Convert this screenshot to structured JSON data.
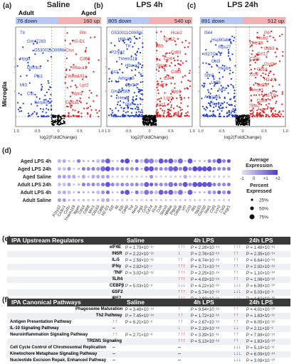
{
  "panels": [
    {
      "letter": "(a)",
      "title": "Saline",
      "left_label": "Adult",
      "right_label": "Aged",
      "down": "76 down",
      "up": "160 up",
      "down_genes": [
        "Ttr",
        "Gm47283",
        "G530011O06Rik",
        "Hpgd",
        "Dmrtb1",
        "Plp1",
        "Mt3",
        "Clu",
        "Serpinf1"
      ],
      "up_genes": [
        "Prlr",
        "H2-D1",
        "Ctss",
        "Cd63",
        "Hba-a1",
        "Tmem181a",
        "Lyz2",
        "Npc2",
        "Eef1a1"
      ]
    },
    {
      "letter": "(b)",
      "title": "LPS 4h",
      "left_label": "",
      "right_label": "",
      "down": "805 down",
      "up": "540 up",
      "down_genes": [
        "G530011O06Rik",
        "Hbb-bs",
        "Ttr",
        "P2ry12",
        "Tmem119",
        "Hba-a1",
        "S11",
        "Arhgap5",
        "Gpr34",
        "Gm47283",
        "Hexb",
        "Pf4"
      ],
      "up_genes": [
        "Hcar2",
        "Ccl12",
        "Il1b",
        "Cd83",
        "Ccl4",
        "Sparc",
        "Cd63",
        "Cd40",
        "Cd74",
        "Spp1",
        "Lcn2",
        "Lyz2"
      ]
    },
    {
      "letter": "(c)",
      "title": "LPS 24h",
      "left_label": "",
      "right_label": "",
      "down": "891 down",
      "up": "512 up",
      "down_genes": [
        "Ifi44",
        "Hsp90ab1",
        "Rps27",
        "Ifi27l2a",
        "Cst3",
        "Hexb",
        "Slfn5",
        "Ly86",
        "Mt3",
        "Arhgap5",
        "Txnip"
      ],
      "up_genes": [
        "Prlr",
        "Hcar2",
        "Cxcl10",
        "Cd63",
        "Ccl12",
        "C1qc",
        "Ccrl2",
        "Cd14",
        "Ccl4",
        "H2-K1",
        "Cd74",
        "Hmox1",
        "H2-D1",
        "Cd83",
        "Slfn2"
      ]
    }
  ],
  "microglia_label": "Microglia",
  "y_axis": "Significance (-log10P)",
  "x_axis": "log2(FoldChange)",
  "volcano_ticks": {
    "x": [
      "-1.0",
      "-0.5",
      "0",
      "0.5",
      "1.0"
    ],
    "y": [
      "0",
      "5",
      "10",
      "15",
      "20"
    ]
  },
  "panel_d": {
    "letter": "(d)",
    "rows": [
      "Aged LPS 4h",
      "Aged LPS 24h",
      "Aged Saline",
      "Adult LPS 24h",
      "Adult LPS 4h",
      "Adult Saline"
    ],
    "cols": [
      "P2ry12",
      "Cx3cr1",
      "Csf1r",
      "Tmem119",
      "Itgam",
      "Cd14",
      "Cd68",
      "Mrc1",
      "Cd163",
      "Cd86",
      "H2-D1",
      "Il10",
      "Il6",
      "Il1b",
      "Cd40",
      "Tnf",
      "Nos2",
      "Arg1",
      "Ccl2",
      "Cd74",
      "Il1rn",
      "Ccl4",
      "Socs3",
      "Nfkbia",
      "Ptgs2",
      "Cebpb",
      "Irf7",
      "Ccl3",
      "Ifit1",
      "Isg15",
      "Cxcl10",
      "Stat1",
      "Csf3",
      "Lcn2",
      "Cst3",
      "Fcgr1"
    ],
    "dots": [
      [
        2,
        2,
        1,
        1,
        2,
        1,
        1,
        1,
        2,
        2,
        3,
        1,
        1,
        2,
        3,
        1,
        2,
        2,
        3,
        3,
        2,
        3,
        2,
        3,
        2,
        3,
        1,
        3,
        1,
        1,
        1,
        2,
        2,
        3,
        2,
        2
      ],
      [
        2,
        2,
        2,
        1,
        1,
        2,
        2,
        2,
        2,
        3,
        3,
        2,
        2,
        2,
        2,
        2,
        2,
        1,
        3,
        3,
        2,
        2,
        2,
        3,
        3,
        2,
        3,
        2,
        3,
        3,
        3,
        3,
        2,
        2,
        2,
        2
      ],
      [
        2,
        2,
        2,
        2,
        1,
        2,
        1,
        2,
        2,
        2,
        2,
        1,
        1,
        1,
        1,
        1,
        1,
        1,
        1,
        2,
        1,
        1,
        1,
        1,
        1,
        1,
        2,
        1,
        1,
        1,
        1,
        1,
        1,
        1,
        1,
        1
      ],
      [
        2,
        2,
        2,
        1,
        1,
        2,
        2,
        2,
        2,
        2,
        3,
        2,
        2,
        2,
        2,
        2,
        2,
        2,
        3,
        2,
        2,
        2,
        2,
        3,
        2,
        2,
        3,
        2,
        3,
        3,
        3,
        3,
        2,
        2,
        2,
        2
      ],
      [
        2,
        2,
        2,
        1,
        1,
        1,
        1,
        1,
        2,
        2,
        2,
        1,
        1,
        2,
        3,
        1,
        2,
        2,
        3,
        2,
        2,
        3,
        2,
        3,
        2,
        3,
        1,
        3,
        1,
        1,
        1,
        2,
        2,
        2,
        2,
        2
      ],
      [
        2,
        2,
        1,
        1,
        1,
        1,
        1,
        1,
        1,
        2,
        2,
        1,
        1,
        1,
        1,
        1,
        1,
        1,
        1,
        1,
        1,
        1,
        1,
        1,
        1,
        1,
        1,
        1,
        1,
        1,
        1,
        1,
        1,
        1,
        1,
        1
      ]
    ],
    "expr": [
      [
        -0.2,
        0,
        -0.4,
        -0.6,
        0.8,
        -0.2,
        -0.4,
        0.3,
        -0.4,
        0.4,
        1.4,
        -0.4,
        -0.4,
        1.6,
        1.8,
        -0.4,
        1.2,
        -0.4,
        1.2,
        0.8,
        -0.4,
        1.6,
        1.4,
        1.6,
        -0.2,
        1.2,
        -0.4,
        1.6,
        -0.4,
        -0.4,
        -0.4,
        0.6,
        0.6,
        1.8,
        0.6,
        1.6
      ],
      [
        -0.4,
        -0.4,
        0.4,
        -0.6,
        -0.2,
        0.8,
        0.6,
        0.8,
        0.4,
        1.2,
        1.8,
        0.8,
        0.4,
        0.6,
        0.4,
        0.4,
        0.8,
        0,
        1.6,
        1.6,
        0.6,
        0.6,
        0.4,
        1.2,
        1.4,
        0.6,
        1.6,
        0.6,
        1.8,
        1.6,
        1.6,
        1.8,
        0.8,
        0.6,
        0.6,
        0.8
      ],
      [
        0.2,
        0.2,
        0,
        0,
        -0.4,
        0,
        -0.4,
        0,
        0,
        0,
        0.2,
        -0.6,
        -0.6,
        -0.6,
        -0.6,
        -0.6,
        -0.6,
        -0.6,
        -0.6,
        0.4,
        -0.6,
        -0.6,
        -0.6,
        -0.6,
        -0.6,
        -0.6,
        0,
        -0.6,
        -0.6,
        -0.6,
        -0.6,
        -0.6,
        -0.6,
        -0.6,
        -0.6,
        -0.6
      ],
      [
        -0.4,
        -0.4,
        0.2,
        -0.6,
        -0.2,
        0.8,
        0.4,
        0.6,
        0.2,
        1,
        1.6,
        0.6,
        0.2,
        0.6,
        0.4,
        0.4,
        0.6,
        0,
        1.4,
        1.4,
        0.6,
        0.6,
        0.4,
        1,
        1.2,
        0.6,
        1.6,
        0.6,
        1.6,
        1.6,
        1.6,
        1.6,
        0.8,
        0.6,
        0.6,
        0.8
      ],
      [
        -0.2,
        0,
        -0.4,
        -0.6,
        0.6,
        -0.2,
        -0.4,
        0.2,
        -0.4,
        0.4,
        1.2,
        -0.4,
        -0.4,
        1.4,
        1.6,
        -0.4,
        1,
        -0.4,
        1,
        0.6,
        -0.4,
        1.4,
        1.2,
        1.4,
        -0.2,
        1,
        -0.4,
        1.4,
        -0.4,
        -0.4,
        -0.4,
        0.4,
        0.4,
        1.6,
        0.4,
        1.4
      ],
      [
        0.2,
        0.2,
        -0.2,
        0,
        -0.4,
        -0.2,
        -0.4,
        -0.2,
        -0.2,
        -0.2,
        0,
        -0.6,
        -0.6,
        -0.6,
        -0.6,
        -0.6,
        -0.6,
        -0.6,
        -0.6,
        0,
        -0.6,
        -0.6,
        -0.6,
        -0.6,
        -0.6,
        -0.6,
        -0.4,
        -0.6,
        -0.6,
        -0.6,
        -0.6,
        -0.6,
        -0.6,
        -0.6,
        -0.6,
        -0.6
      ]
    ],
    "legend_expr_title": "Average\nExpression",
    "legend_expr_ticks": [
      "-1",
      "0",
      "+1",
      "+2"
    ],
    "legend_pct_title": "Percent\nExpressed",
    "legend_pct": [
      "25%",
      "50%",
      "75%"
    ]
  },
  "table_e": {
    "letter": "(e)",
    "title": "IPA Upstream Regulators",
    "cols": [
      "Saline",
      "4h LPS",
      "24h LPS"
    ],
    "rows": [
      {
        "name": "eIF4E",
        "s": [
          "↑↑",
          "P = 1.79×10⁻¹⁷"
        ],
        "h4": [
          "↑↑↑",
          "P = 2.26×10⁻¹⁴"
        ],
        "h24": [
          "↑↑↑",
          "P = 1.48×10⁻¹³"
        ]
      },
      {
        "name": "INSR",
        "s": [
          "↑↑",
          "P = 2.22×10⁻¹²"
        ],
        "h4": [
          "↓",
          "P = 2.76×10⁻¹³"
        ],
        "h24": [
          "↑↑",
          "P = 2.35×10⁻¹⁴"
        ]
      },
      {
        "name": "IL-5",
        "s": [
          "↓↓",
          "P = 2.59×10⁻¹²"
        ],
        "h4": [
          "↑↑",
          "P = 6.74×10⁻¹³"
        ],
        "h24": [
          "↑↑",
          "P = 6.64×10⁻¹³"
        ]
      },
      {
        "name": "IFNγ",
        "s": [
          "↑↑",
          "P = 2.82×10⁻⁷"
        ],
        "h4": [
          "↑↑↑",
          "P = 2.71×10⁻¹⁵"
        ],
        "h24": [
          "↑↑",
          "P = 2.92×10⁻¹³"
        ]
      },
      {
        "name": "TNF",
        "s": [
          "↑↑",
          "P = 3.02×10⁻¹²"
        ],
        "h4": [
          "↑↑↑",
          "P = 2.25×10⁻¹⁴"
        ],
        "h24": [
          "↑↑",
          "P = 1.10×10⁻¹⁰"
        ]
      },
      {
        "name": "TLR4",
        "s": [
          "–",
          ""
        ],
        "h4": [
          "↑↑↑",
          "P = 4.03×10⁻¹⁵"
        ],
        "h24": [
          "↑↑",
          "P = 1.06×10⁻¹²"
        ]
      },
      {
        "name": "CEBPβ",
        "s": [
          "↓",
          "P = 5.03×10⁻³"
        ],
        "h4": [
          "↓↓↓",
          "P = 4.22×10⁻¹²"
        ],
        "h24": [
          "↓↓↓",
          "P = 6.99×10⁻¹⁰"
        ]
      },
      {
        "name": "CSF2",
        "s": [
          "–",
          ""
        ],
        "h4": [
          "↑↑↑",
          "P = 5.74×10⁻¹³"
        ],
        "h24": [
          "↓↓↓",
          "P = 5.03×10⁻⁹"
        ]
      },
      {
        "name": "IRF7",
        "s": [
          "–",
          ""
        ],
        "h4": [
          "↑↑↑",
          "P = 2.83×10⁻¹⁵"
        ],
        "h24": [
          "↓↓↓",
          "P = 4.62×10⁻¹⁰"
        ]
      }
    ]
  },
  "table_f": {
    "letter": "(f)",
    "title": "IPA Canonical Pathways",
    "cols": [
      "Saline",
      "4h LPS",
      "24h LPS"
    ],
    "rows": [
      {
        "name": "Phagosome Maturation",
        "s": [
          "↑",
          "P = 3.48×10⁻¹³"
        ],
        "h4": [
          "↑",
          "P = 9.94×10⁻¹²"
        ],
        "h24": [
          "↑↑",
          "P = 4.01×10⁻¹⁰"
        ]
      },
      {
        "name": "Th2 Pathway",
        "s": [
          "↑↑",
          "P = 7.45×10⁻¹⁵"
        ],
        "h4": [
          "↑↑",
          "P = 1.72×10⁻¹³"
        ],
        "h24": [
          "↑↑",
          "P = 1.63×10⁻¹²"
        ]
      },
      {
        "name": "Antigen Presentation Pathway",
        "s": [
          "↑↑",
          "P = 8.21×10⁻⁹"
        ],
        "h4": [
          "↑↑",
          "P = 2.67×10⁻¹²"
        ],
        "h24": [
          "↑↑",
          "P = 6.05×10⁻¹²"
        ]
      },
      {
        "name": "IL-10 Signaling Pathway",
        "s": [
          "–",
          ""
        ],
        "h4": [
          "↓",
          "P = 2.19×10⁻¹⁹"
        ],
        "h24": [
          "↓↓",
          "P = 2.11×10⁻⁹"
        ]
      },
      {
        "name": "Neuroinflammation Signaling Pathway",
        "s": [
          "↑↑",
          "P = 2.71×10⁻⁹"
        ],
        "h4": [
          "↑↑↑",
          "P = 3.39×10⁻¹¹"
        ],
        "h24": [
          "↑↑",
          "P = 7.88×10⁻¹⁵"
        ]
      },
      {
        "name": "TREM1 Signaling",
        "s": [
          "–",
          ""
        ],
        "h4": [
          "↑↑↑",
          "P = 5.13×10⁻¹⁵"
        ],
        "h24": [
          "↑↑",
          "P = 1.63×10⁻¹⁰"
        ]
      },
      {
        "name": "Cell Cycle Control of Chromosomal Replication",
        "s": [
          "–",
          ""
        ],
        "h4": [
          "–",
          ""
        ],
        "h24": [
          "↓↓↓",
          "P = 5.19×10⁻¹¹"
        ]
      },
      {
        "name": "Kinetochore Metaphase Signaling Pathway",
        "s": [
          "–",
          ""
        ],
        "h4": [
          "–",
          ""
        ],
        "h24": [
          "↓↓↓",
          "P = 6.09×10⁻¹⁰"
        ]
      },
      {
        "name": "Nucleotide Excision Repair, Enhanced Pathway",
        "s": [
          "–",
          ""
        ],
        "h4": [
          "–",
          ""
        ],
        "h24": [
          "↓↓↓",
          "P = 3.08×10⁻¹⁰"
        ]
      }
    ]
  },
  "colors": {
    "up": "#e02020",
    "down": "#1f3fd0",
    "bar_down": "#b9c8f2",
    "bar_up": "#f3b2b2",
    "header": "#3a3a3a"
  }
}
